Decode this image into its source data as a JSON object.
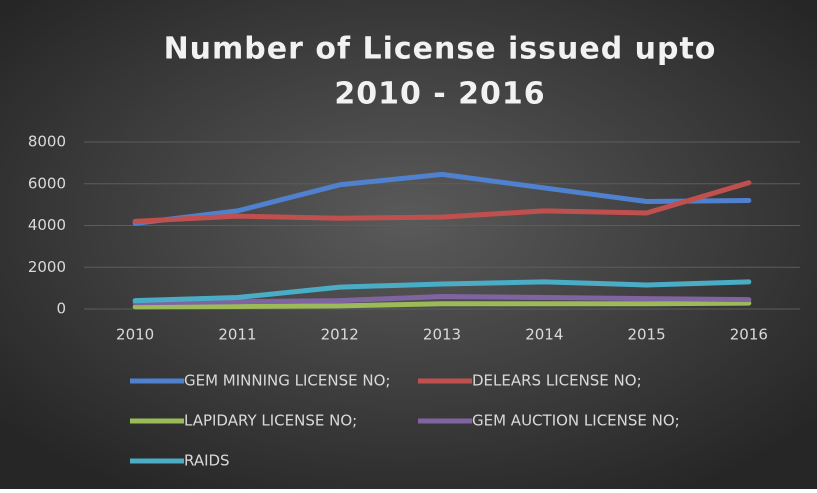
{
  "chart_data": {
    "type": "line",
    "title": [
      "Number of License issued upto",
      "2010 - 2016"
    ],
    "categories": [
      "2010",
      "2011",
      "2012",
      "2013",
      "2014",
      "2015",
      "2016"
    ],
    "series": [
      {
        "name": "GEM MINNING LICENSE NO;",
        "color": "#4f81cf",
        "values": [
          4100,
          4700,
          5950,
          6450,
          5800,
          5150,
          5200
        ]
      },
      {
        "name": "DELEARS LICENSE NO;",
        "color": "#c0504d",
        "values": [
          4200,
          4450,
          4350,
          4400,
          4700,
          4600,
          6050
        ]
      },
      {
        "name": "LAPIDARY LICENSE NO;",
        "color": "#9bbb59",
        "values": [
          100,
          120,
          150,
          250,
          250,
          250,
          280
        ]
      },
      {
        "name": "GEM AUCTION LICENSE NO;",
        "color": "#8064a2",
        "values": [
          300,
          350,
          400,
          600,
          550,
          500,
          450
        ]
      },
      {
        "name": "RAIDS",
        "color": "#4bacc6",
        "values": [
          400,
          550,
          1050,
          1200,
          1300,
          1150,
          1300
        ]
      }
    ],
    "ylim": [
      0,
      8000
    ],
    "yticks": [
      0,
      2000,
      4000,
      6000,
      8000
    ],
    "grid": true
  }
}
